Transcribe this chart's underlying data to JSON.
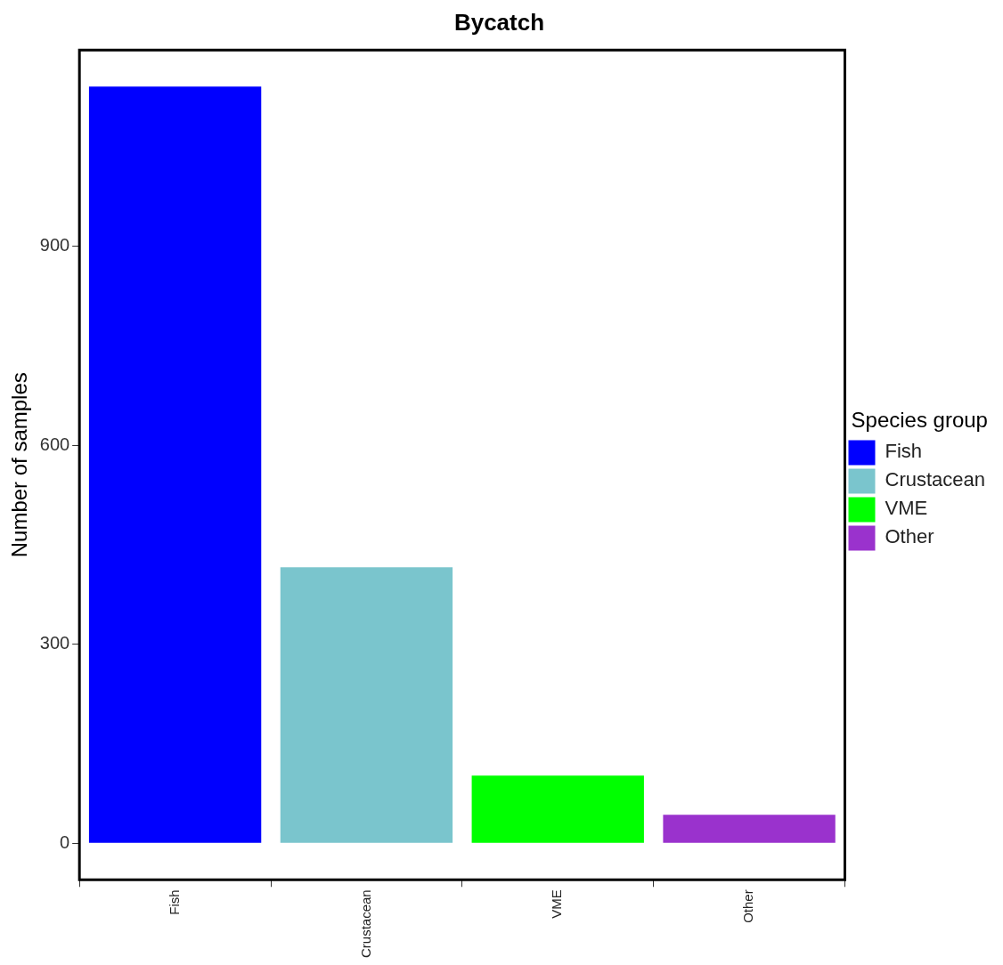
{
  "chart_data": {
    "type": "bar",
    "title": "Bycatch",
    "ylabel": "Number of samples",
    "legend_title": "Species group",
    "categories": [
      "Fish",
      "Crustacean",
      "VME",
      "Other"
    ],
    "series": [
      {
        "name": "Fish",
        "color": "#0000ff",
        "values": [
          1141,
          null,
          null,
          null
        ]
      },
      {
        "name": "Crustacean",
        "color": "#7ac5cd",
        "values": [
          null,
          416,
          null,
          null
        ]
      },
      {
        "name": "VME",
        "color": "#00ff00",
        "values": [
          null,
          null,
          102,
          null
        ]
      },
      {
        "name": "Other",
        "color": "#9a32cd",
        "values": [
          null,
          null,
          null,
          43
        ]
      }
    ],
    "ylim": [
      -55,
      1196
    ],
    "yticks": [
      0,
      300,
      600,
      900
    ],
    "grid": false,
    "legend": "right"
  }
}
